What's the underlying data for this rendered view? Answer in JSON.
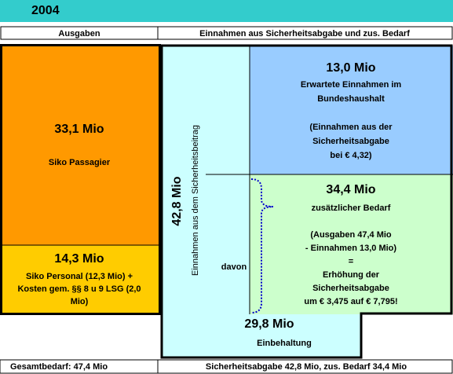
{
  "header": {
    "year": "2004"
  },
  "columns": [
    "Ausgaben",
    "Einnahmen aus Sicherheitsabgabe und zus. Bedarf"
  ],
  "expenses": {
    "passenger": {
      "amount": "33,1 Mio",
      "label": "Siko Passagier"
    },
    "personnel": {
      "amount": "14,3 Mio",
      "lines": [
        "Siko Personal (12,3 Mio) +",
        "Kosten gem. §§ 8 u 9 LSG (2,0",
        "Mio)"
      ]
    }
  },
  "revenue": {
    "total": {
      "amount": "42,8 Mio",
      "label": "Einnahmen aus dem Sicherheitsbeitrag"
    },
    "davon": "davon",
    "budget": {
      "amount": "13,0 Mio",
      "lines": [
        "Erwartete Einnahmen im",
        "Bundeshaushalt",
        "",
        "(Einnahmen aus der",
        "Sicherheitsabgabe",
        "bei € 4,32)"
      ]
    },
    "additional": {
      "amount": "34,4 Mio",
      "lines": [
        "zusätzlicher Bedarf",
        "",
        "(Ausgaben 47,4 Mio",
        "- Einnahmen 13,0 Mio)",
        "=",
        "Erhöhung der",
        "Sicherheitsabgabe",
        "um € 3,475 auf € 7,795!"
      ]
    },
    "retention": {
      "amount": "29,8 Mio",
      "label": "Einbehaltung"
    }
  },
  "footer": [
    "Gesamtbedarf: 47,4 Mio",
    "Sicherheitsabgabe 42,8 Mio, zus. Bedarf 34,4 Mio"
  ]
}
